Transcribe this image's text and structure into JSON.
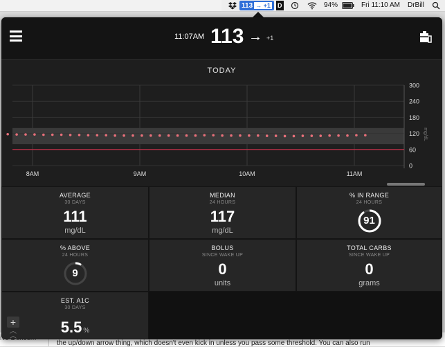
{
  "menubar": {
    "status_value": "113",
    "status_arrow": "→ +1",
    "d_icon": "D",
    "battery": "94%",
    "datetime": "Fri 11:10 AM",
    "user": "DrBill"
  },
  "header": {
    "time": "11:07AM",
    "value": "113",
    "arrow": "→",
    "delta": "+1"
  },
  "chart": {
    "title": "TODAY",
    "y_ticks": [
      "300",
      "240",
      "180",
      "120",
      "60",
      "0"
    ],
    "y_unit": "mg/dL",
    "x_ticks": [
      "8AM",
      "9AM",
      "10AM",
      "11AM"
    ]
  },
  "chart_data": {
    "type": "scatter",
    "title": "TODAY",
    "ylabel": "mg/dL",
    "ylim": [
      0,
      300
    ],
    "yticks": [
      0,
      60,
      120,
      180,
      240,
      300
    ],
    "xticks": [
      "8AM",
      "9AM",
      "10AM",
      "11AM"
    ],
    "target_range": [
      80,
      140
    ],
    "low_line": 60,
    "x_minutes_after_7_40": [
      0,
      5,
      10,
      15,
      20,
      25,
      30,
      35,
      40,
      45,
      50,
      55,
      60,
      65,
      70,
      75,
      80,
      85,
      90,
      95,
      100,
      105,
      110,
      115,
      120,
      125,
      130,
      135,
      140,
      145,
      150,
      155,
      160,
      165,
      170,
      175,
      180,
      185,
      190,
      195,
      200,
      205,
      210
    ],
    "values": [
      117,
      117,
      117,
      116,
      116,
      116,
      115,
      115,
      115,
      114,
      114,
      113,
      113,
      113,
      112,
      112,
      112,
      112,
      112,
      112,
      112,
      112,
      112,
      112,
      113,
      113,
      112,
      112,
      112,
      112,
      112,
      111,
      111,
      110,
      110,
      111,
      111,
      111,
      112,
      112,
      112,
      113,
      113
    ]
  },
  "stats": {
    "average": {
      "label": "AVERAGE",
      "sub": "30 DAYS",
      "value": "111",
      "unit": "mg/dL"
    },
    "median": {
      "label": "MEDIAN",
      "sub": "24 HOURS",
      "value": "117",
      "unit": "mg/dL"
    },
    "in_range": {
      "label": "% IN RANGE",
      "sub": "24 HOURS",
      "value": "91",
      "percent": 91
    },
    "above": {
      "label": "% ABOVE",
      "sub": "24 HOURS",
      "value": "9",
      "percent": 9
    },
    "bolus": {
      "label": "BOLUS",
      "sub": "SINCE WAKE UP",
      "value": "0",
      "unit": "units"
    },
    "carbs": {
      "label": "TOTAL CARBS",
      "sub": "SINCE WAKE UP",
      "value": "0",
      "unit": "grams"
    },
    "a1c": {
      "label": "EST. A1C",
      "sub": "30 DAYS",
      "value": "5.5",
      "unit": "%"
    }
  },
  "controls": {
    "plus": "+"
  },
  "background": {
    "left_text": "ive Dexcom",
    "body_text": "the up/down arrow thing, which doesn't even kick in unless you pass some threshold. You can also run"
  },
  "colors": {
    "popover_bg": "#1a1a1a",
    "tile_bg": "#262626",
    "dot": "#e8707a",
    "low_line": "#d0304a",
    "menubar_highlight": "#2f6fd8"
  }
}
